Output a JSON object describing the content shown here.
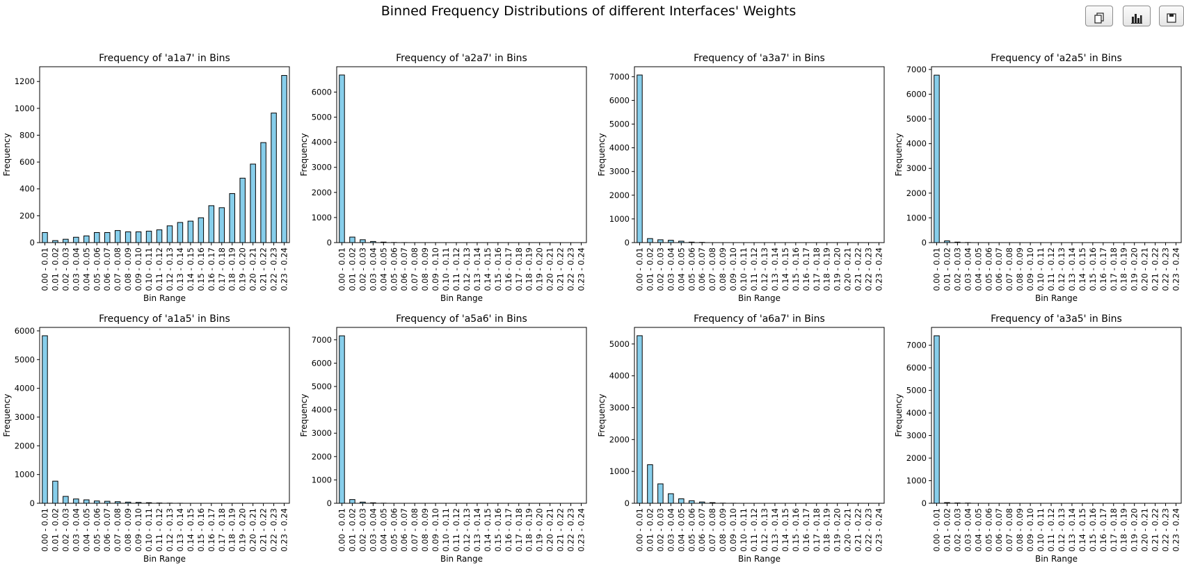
{
  "figure": {
    "suptitle": "Binned Frequency Distributions of different Interfaces' Weights"
  },
  "toolbar": {
    "buttons": [
      {
        "name": "copy-button",
        "icon": "copy-icon"
      },
      {
        "name": "chart-button",
        "icon": "bar-chart-icon"
      },
      {
        "name": "save-button",
        "icon": "save-icon"
      }
    ]
  },
  "style": {
    "bar_fill": "#87ceeb",
    "bar_edge": "#000000",
    "text_color": "#000000"
  },
  "chart_data": [
    {
      "type": "bar",
      "title": "Frequency of 'a1a7' in Bins",
      "xlabel": "Bin Range",
      "ylabel": "Frequency",
      "categories": [
        "0.00 - 0.01",
        "0.01 - 0.02",
        "0.02 - 0.03",
        "0.03 - 0.04",
        "0.04 - 0.05",
        "0.05 - 0.06",
        "0.06 - 0.07",
        "0.07 - 0.08",
        "0.08 - 0.09",
        "0.09 - 0.10",
        "0.10 - 0.11",
        "0.11 - 0.12",
        "0.12 - 0.13",
        "0.13 - 0.14",
        "0.14 - 0.15",
        "0.15 - 0.16",
        "0.16 - 0.17",
        "0.17 - 0.18",
        "0.18 - 0.19",
        "0.19 - 0.20",
        "0.20 - 0.21",
        "0.21 - 0.22",
        "0.22 - 0.23",
        "0.23 - 0.24"
      ],
      "values": [
        75,
        15,
        25,
        40,
        50,
        75,
        75,
        90,
        80,
        80,
        85,
        95,
        125,
        150,
        160,
        185,
        275,
        260,
        365,
        480,
        585,
        745,
        965,
        1245
      ],
      "ylim": [
        0,
        1310
      ],
      "yticks": [
        0,
        200,
        400,
        600,
        800,
        1000,
        1200
      ],
      "grid": false
    },
    {
      "type": "bar",
      "title": "Frequency of 'a2a7' in Bins",
      "xlabel": "Bin Range",
      "ylabel": "Frequency",
      "categories": [
        "0.00 - 0.01",
        "0.01 - 0.02",
        "0.02 - 0.03",
        "0.03 - 0.04",
        "0.04 - 0.05",
        "0.05 - 0.06",
        "0.06 - 0.07",
        "0.07 - 0.08",
        "0.08 - 0.09",
        "0.09 - 0.10",
        "0.10 - 0.11",
        "0.11 - 0.12",
        "0.12 - 0.13",
        "0.13 - 0.14",
        "0.14 - 0.15",
        "0.15 - 0.16",
        "0.16 - 0.17",
        "0.17 - 0.18",
        "0.18 - 0.19",
        "0.19 - 0.20",
        "0.20 - 0.21",
        "0.21 - 0.22",
        "0.22 - 0.23",
        "0.23 - 0.24"
      ],
      "values": [
        6680,
        220,
        115,
        45,
        20,
        5,
        2,
        0,
        0,
        0,
        0,
        0,
        0,
        0,
        0,
        0,
        0,
        0,
        0,
        0,
        0,
        0,
        0,
        0
      ],
      "ylim": [
        0,
        7010
      ],
      "yticks": [
        0,
        1000,
        2000,
        3000,
        4000,
        5000,
        6000
      ],
      "grid": false
    },
    {
      "type": "bar",
      "title": "Frequency of 'a3a7' in Bins",
      "xlabel": "Bin Range",
      "ylabel": "Frequency",
      "categories": [
        "0.00 - 0.01",
        "0.01 - 0.02",
        "0.02 - 0.03",
        "0.03 - 0.04",
        "0.04 - 0.05",
        "0.05 - 0.06",
        "0.06 - 0.07",
        "0.07 - 0.08",
        "0.08 - 0.09",
        "0.09 - 0.10",
        "0.10 - 0.11",
        "0.11 - 0.12",
        "0.12 - 0.13",
        "0.13 - 0.14",
        "0.14 - 0.15",
        "0.15 - 0.16",
        "0.16 - 0.17",
        "0.17 - 0.18",
        "0.18 - 0.19",
        "0.19 - 0.20",
        "0.20 - 0.21",
        "0.21 - 0.22",
        "0.22 - 0.23",
        "0.23 - 0.24"
      ],
      "values": [
        7070,
        170,
        120,
        100,
        60,
        20,
        10,
        0,
        0,
        0,
        0,
        0,
        0,
        0,
        0,
        0,
        0,
        0,
        0,
        0,
        0,
        0,
        0,
        0
      ],
      "ylim": [
        0,
        7420
      ],
      "yticks": [
        0,
        1000,
        2000,
        3000,
        4000,
        5000,
        6000,
        7000
      ],
      "grid": false
    },
    {
      "type": "bar",
      "title": "Frequency of 'a2a5' in Bins",
      "xlabel": "Bin Range",
      "ylabel": "Frequency",
      "categories": [
        "0.00 - 0.01",
        "0.01 - 0.02",
        "0.02 - 0.03",
        "0.03 - 0.04",
        "0.04 - 0.05",
        "0.05 - 0.06",
        "0.06 - 0.07",
        "0.07 - 0.08",
        "0.08 - 0.09",
        "0.09 - 0.10",
        "0.10 - 0.11",
        "0.11 - 0.12",
        "0.12 - 0.13",
        "0.13 - 0.14",
        "0.14 - 0.15",
        "0.15 - 0.16",
        "0.16 - 0.17",
        "0.17 - 0.18",
        "0.18 - 0.19",
        "0.19 - 0.20",
        "0.20 - 0.21",
        "0.21 - 0.22",
        "0.22 - 0.23",
        "0.23 - 0.24"
      ],
      "values": [
        6770,
        70,
        20,
        5,
        0,
        0,
        0,
        0,
        0,
        0,
        0,
        0,
        0,
        0,
        0,
        0,
        0,
        0,
        0,
        0,
        0,
        0,
        0,
        0
      ],
      "ylim": [
        0,
        7110
      ],
      "yticks": [
        0,
        1000,
        2000,
        3000,
        4000,
        5000,
        6000,
        7000
      ],
      "grid": false
    },
    {
      "type": "bar",
      "title": "Frequency of 'a1a5' in Bins",
      "xlabel": "Bin Range",
      "ylabel": "Frequency",
      "categories": [
        "0.00 - 0.01",
        "0.01 - 0.02",
        "0.02 - 0.03",
        "0.03 - 0.04",
        "0.04 - 0.05",
        "0.05 - 0.06",
        "0.06 - 0.07",
        "0.07 - 0.08",
        "0.08 - 0.09",
        "0.09 - 0.10",
        "0.10 - 0.11",
        "0.11 - 0.12",
        "0.12 - 0.13",
        "0.13 - 0.14",
        "0.14 - 0.15",
        "0.15 - 0.16",
        "0.16 - 0.17",
        "0.17 - 0.18",
        "0.18 - 0.19",
        "0.19 - 0.20",
        "0.20 - 0.21",
        "0.21 - 0.22",
        "0.22 - 0.23",
        "0.23 - 0.24"
      ],
      "values": [
        5830,
        770,
        240,
        150,
        120,
        80,
        70,
        55,
        40,
        30,
        20,
        10,
        5,
        2,
        0,
        0,
        0,
        0,
        0,
        0,
        0,
        0,
        0,
        0
      ],
      "ylim": [
        0,
        6120
      ],
      "yticks": [
        0,
        1000,
        2000,
        3000,
        4000,
        5000,
        6000
      ],
      "grid": false
    },
    {
      "type": "bar",
      "title": "Frequency of 'a5a6' in Bins",
      "xlabel": "Bin Range",
      "ylabel": "Frequency",
      "categories": [
        "0.00 - 0.01",
        "0.01 - 0.02",
        "0.02 - 0.03",
        "0.03 - 0.04",
        "0.04 - 0.05",
        "0.05 - 0.06",
        "0.06 - 0.07",
        "0.07 - 0.08",
        "0.08 - 0.09",
        "0.09 - 0.10",
        "0.10 - 0.11",
        "0.11 - 0.12",
        "0.12 - 0.13",
        "0.13 - 0.14",
        "0.14 - 0.15",
        "0.15 - 0.16",
        "0.16 - 0.17",
        "0.17 - 0.18",
        "0.18 - 0.19",
        "0.19 - 0.20",
        "0.20 - 0.21",
        "0.21 - 0.22",
        "0.22 - 0.23",
        "0.23 - 0.24"
      ],
      "values": [
        7170,
        160,
        50,
        20,
        5,
        0,
        0,
        0,
        0,
        0,
        0,
        0,
        0,
        0,
        0,
        0,
        0,
        0,
        0,
        0,
        0,
        0,
        0,
        0
      ],
      "ylim": [
        0,
        7530
      ],
      "yticks": [
        0,
        1000,
        2000,
        3000,
        4000,
        5000,
        6000,
        7000
      ],
      "grid": false
    },
    {
      "type": "bar",
      "title": "Frequency of 'a6a7' in Bins",
      "xlabel": "Bin Range",
      "ylabel": "Frequency",
      "categories": [
        "0.00 - 0.01",
        "0.01 - 0.02",
        "0.02 - 0.03",
        "0.03 - 0.04",
        "0.04 - 0.05",
        "0.05 - 0.06",
        "0.06 - 0.07",
        "0.07 - 0.08",
        "0.08 - 0.09",
        "0.09 - 0.10",
        "0.10 - 0.11",
        "0.11 - 0.12",
        "0.12 - 0.13",
        "0.13 - 0.14",
        "0.14 - 0.15",
        "0.15 - 0.16",
        "0.16 - 0.17",
        "0.17 - 0.18",
        "0.18 - 0.19",
        "0.19 - 0.20",
        "0.20 - 0.21",
        "0.21 - 0.22",
        "0.22 - 0.23",
        "0.23 - 0.24"
      ],
      "values": [
        5260,
        1210,
        610,
        300,
        140,
        80,
        40,
        20,
        5,
        2,
        0,
        0,
        0,
        0,
        0,
        0,
        0,
        0,
        0,
        0,
        0,
        0,
        0,
        0
      ],
      "ylim": [
        0,
        5520
      ],
      "yticks": [
        0,
        1000,
        2000,
        3000,
        4000,
        5000
      ],
      "grid": false
    },
    {
      "type": "bar",
      "title": "Frequency of 'a3a5' in Bins",
      "xlabel": "Bin Range",
      "ylabel": "Frequency",
      "categories": [
        "0.00 - 0.01",
        "0.01 - 0.02",
        "0.02 - 0.03",
        "0.03 - 0.04",
        "0.04 - 0.05",
        "0.05 - 0.06",
        "0.06 - 0.07",
        "0.07 - 0.08",
        "0.08 - 0.09",
        "0.09 - 0.10",
        "0.10 - 0.11",
        "0.11 - 0.12",
        "0.12 - 0.13",
        "0.13 - 0.14",
        "0.14 - 0.15",
        "0.15 - 0.16",
        "0.16 - 0.17",
        "0.17 - 0.18",
        "0.18 - 0.19",
        "0.19 - 0.20",
        "0.20 - 0.21",
        "0.21 - 0.22",
        "0.22 - 0.23",
        "0.23 - 0.24"
      ],
      "values": [
        7420,
        30,
        15,
        10,
        0,
        0,
        0,
        0,
        0,
        0,
        0,
        0,
        0,
        0,
        0,
        0,
        0,
        0,
        0,
        0,
        0,
        0,
        0,
        0
      ],
      "ylim": [
        0,
        7790
      ],
      "yticks": [
        0,
        1000,
        2000,
        3000,
        4000,
        5000,
        6000,
        7000
      ],
      "grid": false
    }
  ]
}
